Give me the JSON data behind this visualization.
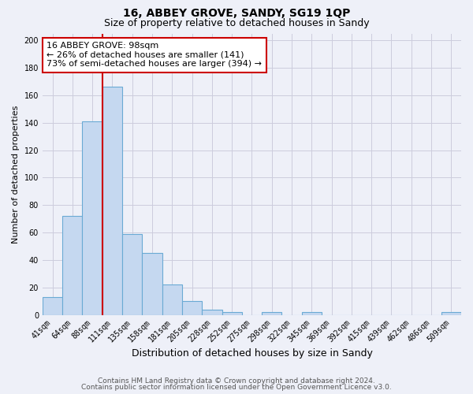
{
  "title1": "16, ABBEY GROVE, SANDY, SG19 1QP",
  "title2": "Size of property relative to detached houses in Sandy",
  "xlabel": "Distribution of detached houses by size in Sandy",
  "ylabel": "Number of detached properties",
  "bar_labels": [
    "41sqm",
    "64sqm",
    "88sqm",
    "111sqm",
    "135sqm",
    "158sqm",
    "181sqm",
    "205sqm",
    "228sqm",
    "252sqm",
    "275sqm",
    "298sqm",
    "322sqm",
    "345sqm",
    "369sqm",
    "392sqm",
    "415sqm",
    "439sqm",
    "462sqm",
    "486sqm",
    "509sqm"
  ],
  "bar_values": [
    13,
    72,
    141,
    166,
    59,
    45,
    22,
    10,
    4,
    2,
    0,
    2,
    0,
    2,
    0,
    0,
    0,
    0,
    0,
    0,
    2
  ],
  "bar_color": "#c5d8f0",
  "bar_edge_color": "#6aaad4",
  "vline_color": "#cc0000",
  "vline_xindex": 2.5,
  "annotation_line1": "16 ABBEY GROVE: 98sqm",
  "annotation_line2": "← 26% of detached houses are smaller (141)",
  "annotation_line3": "73% of semi-detached houses are larger (394) →",
  "annotation_box_color": "#ffffff",
  "annotation_box_edge": "#cc0000",
  "ylim": [
    0,
    205
  ],
  "yticks": [
    0,
    20,
    40,
    60,
    80,
    100,
    120,
    140,
    160,
    180,
    200
  ],
  "grid_color": "#ccccdd",
  "footer1": "Contains HM Land Registry data © Crown copyright and database right 2024.",
  "footer2": "Contains public sector information licensed under the Open Government Licence v3.0.",
  "bg_color": "#eef0f8",
  "title_fontsize": 10,
  "subtitle_fontsize": 9,
  "tick_fontsize": 7,
  "ylabel_fontsize": 8,
  "xlabel_fontsize": 9,
  "annotation_fontsize": 8
}
